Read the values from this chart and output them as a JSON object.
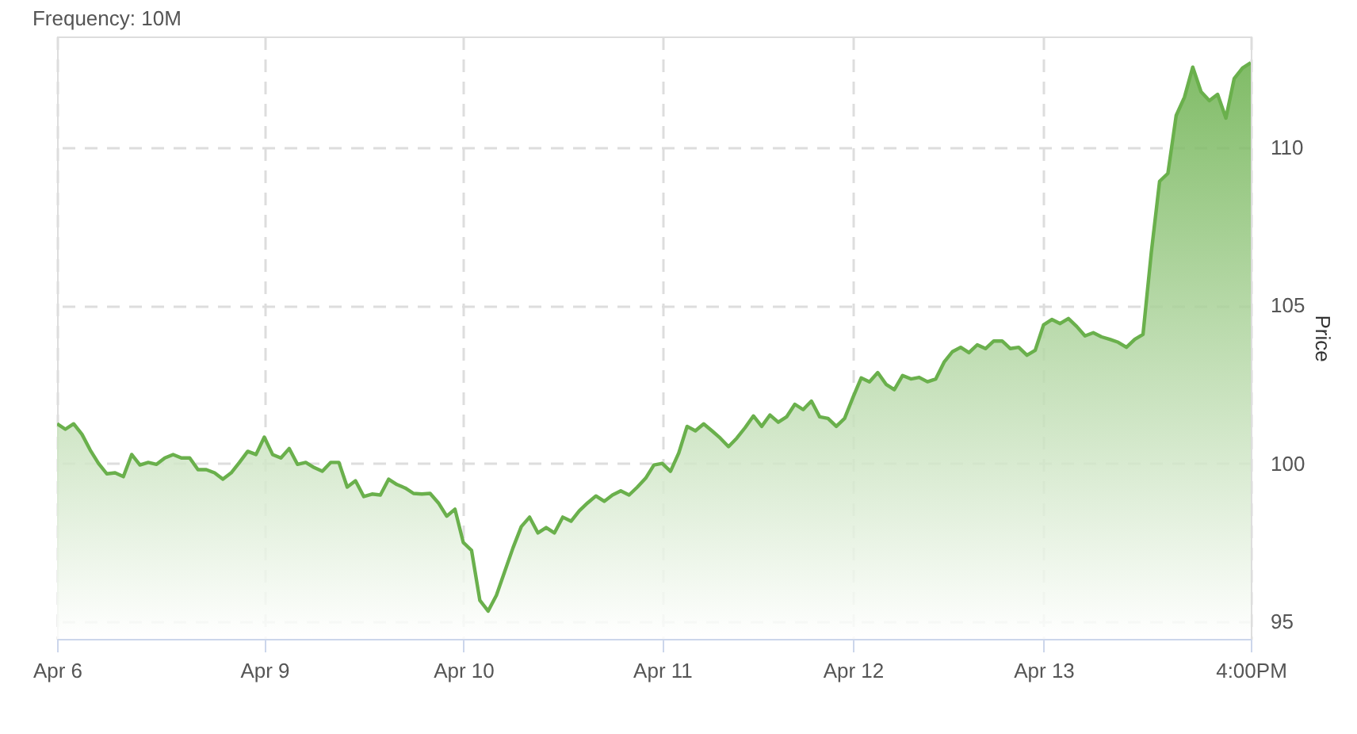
{
  "chart_data": {
    "type": "area",
    "title": "Frequency: 10M",
    "ylabel": "Price",
    "categories": [
      "Apr 6",
      null,
      null,
      null,
      null,
      null,
      null,
      null,
      null,
      null,
      null,
      null,
      null,
      null,
      null,
      null,
      null,
      null,
      null,
      null,
      null,
      null,
      null,
      null,
      null,
      "Apr 9",
      null,
      null,
      null,
      null,
      null,
      null,
      null,
      null,
      null,
      null,
      null,
      null,
      null,
      null,
      null,
      null,
      null,
      null,
      null,
      null,
      null,
      null,
      null,
      "Apr 10",
      null,
      null,
      null,
      null,
      null,
      null,
      null,
      null,
      null,
      null,
      null,
      null,
      null,
      null,
      null,
      null,
      null,
      null,
      null,
      null,
      null,
      null,
      null,
      "Apr 11",
      null,
      null,
      null,
      null,
      null,
      null,
      null,
      null,
      null,
      null,
      null,
      null,
      null,
      null,
      null,
      null,
      null,
      null,
      null,
      null,
      null,
      null,
      "Apr 12",
      null,
      null,
      null,
      null,
      null,
      null,
      null,
      null,
      null,
      null,
      null,
      null,
      null,
      null,
      null,
      null,
      null,
      null,
      null,
      null,
      null,
      null,
      "Apr 13",
      null,
      null,
      null,
      null,
      null,
      null,
      null,
      null,
      null,
      null,
      null,
      null,
      null,
      null,
      null,
      null,
      null,
      null,
      null,
      null,
      null,
      null,
      null,
      null,
      "4:00PM"
    ],
    "ylim": [
      94.45,
      113.5
    ],
    "yticks": [
      95,
      100,
      105,
      110
    ],
    "grid": true,
    "line_style": "solid",
    "series": [
      {
        "color": "#6ab04c",
        "values": [
          101.25,
          101.08,
          101.25,
          100.92,
          100.42,
          100.0,
          99.67,
          99.7,
          99.58,
          100.28,
          99.95,
          100.03,
          99.97,
          100.17,
          100.28,
          100.17,
          100.17,
          99.8,
          99.8,
          99.7,
          99.5,
          99.7,
          100.03,
          100.38,
          100.28,
          100.83,
          100.28,
          100.17,
          100.47,
          99.97,
          100.03,
          99.87,
          99.75,
          100.03,
          100.03,
          99.25,
          99.45,
          98.95,
          99.03,
          99.0,
          99.5,
          99.33,
          99.22,
          99.05,
          99.03,
          99.05,
          98.75,
          98.33,
          98.55,
          97.5,
          97.25,
          95.67,
          95.33,
          95.83,
          96.58,
          97.33,
          98.0,
          98.3,
          97.8,
          97.97,
          97.8,
          98.3,
          98.17,
          98.5,
          98.75,
          98.97,
          98.8,
          99.0,
          99.13,
          99.0,
          99.25,
          99.53,
          99.95,
          100.0,
          99.75,
          100.33,
          101.17,
          101.03,
          101.25,
          101.03,
          100.8,
          100.53,
          100.8,
          101.13,
          101.5,
          101.17,
          101.53,
          101.3,
          101.47,
          101.87,
          101.7,
          101.97,
          101.47,
          101.42,
          101.17,
          101.42,
          102.08,
          102.7,
          102.58,
          102.87,
          102.5,
          102.33,
          102.78,
          102.67,
          102.72,
          102.58,
          102.67,
          103.2,
          103.53,
          103.67,
          103.5,
          103.75,
          103.63,
          103.87,
          103.87,
          103.63,
          103.67,
          103.42,
          103.58,
          104.38,
          104.55,
          104.42,
          104.58,
          104.33,
          104.03,
          104.13,
          104.0,
          103.92,
          103.83,
          103.67,
          103.92,
          104.08,
          106.67,
          108.92,
          109.17,
          111.0,
          111.58,
          112.53,
          111.75,
          111.47,
          111.67,
          110.92,
          112.17,
          112.5,
          112.67
        ]
      }
    ]
  }
}
